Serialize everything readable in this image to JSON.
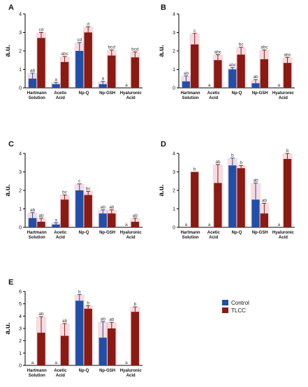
{
  "categories": [
    [
      "Hartmann",
      "Solution"
    ],
    [
      "Acetic",
      "Acid"
    ],
    [
      "Np-Q"
    ],
    [
      "Np-GSH"
    ],
    [
      "Hyaluronic",
      "Acid"
    ]
  ],
  "colors": {
    "control": "#1f4fa8",
    "tlcc": "#8b1a12",
    "error": "#e69aa8"
  },
  "legend": [
    {
      "label": "Control",
      "color": "#1f4fa8"
    },
    {
      "label": "TLCC",
      "color": "#8b1a12"
    }
  ],
  "chart_data": [
    {
      "type": "bar",
      "panel": "A",
      "ylabel": "a.u.",
      "ylim": [
        0,
        4
      ],
      "yticks": [
        0,
        1,
        2,
        3,
        4
      ],
      "series": [
        {
          "name": "Control",
          "values": [
            0.5,
            0.2,
            2.0,
            0.2,
            0.0
          ],
          "errors": [
            0.3,
            0.1,
            0.45,
            0.15,
            0
          ],
          "labels": [
            "ab",
            "a",
            "cd",
            "a",
            "a"
          ]
        },
        {
          "name": "TLCC",
          "values": [
            2.7,
            1.4,
            3.0,
            1.75,
            1.65
          ],
          "errors": [
            0.3,
            0.3,
            0.3,
            0.3,
            0.3
          ],
          "labels": [
            "cd",
            "abc",
            "d",
            "bcd",
            "bcd"
          ]
        }
      ]
    },
    {
      "type": "bar",
      "panel": "B",
      "ylabel": "a.u.",
      "ylim": [
        0,
        4
      ],
      "yticks": [
        0,
        1,
        2,
        3,
        4
      ],
      "series": [
        {
          "name": "Control",
          "values": [
            0.35,
            0.0,
            1.0,
            0.25,
            0.0
          ],
          "errors": [
            0.3,
            0,
            0.1,
            0.2,
            0
          ],
          "labels": [
            "ab",
            "a",
            "abc",
            "ab",
            "a"
          ]
        },
        {
          "name": "TLCC",
          "values": [
            2.35,
            1.5,
            1.8,
            1.55,
            1.35
          ],
          "errors": [
            0.6,
            0.3,
            0.4,
            0.5,
            0.3
          ],
          "labels": [
            "c",
            "abc",
            "bc",
            "abc",
            "abc"
          ]
        }
      ]
    },
    {
      "type": "bar",
      "panel": "C",
      "ylabel": "a.u.",
      "ylim": [
        0,
        4
      ],
      "yticks": [
        0,
        1,
        2,
        3,
        4
      ],
      "series": [
        {
          "name": "Control",
          "values": [
            0.5,
            0.15,
            2.0,
            0.75,
            0.0
          ],
          "errors": [
            0.3,
            0.1,
            0.35,
            0.2,
            0
          ],
          "labels": [
            "ab",
            "a",
            "c",
            "ab",
            "a"
          ]
        },
        {
          "name": "TLCC",
          "values": [
            0.3,
            1.5,
            1.75,
            0.75,
            0.3
          ],
          "errors": [
            0.2,
            0.25,
            0.2,
            0.2,
            0.2
          ],
          "labels": [
            "ab",
            "bc",
            "bc",
            "ab",
            "ab"
          ]
        }
      ]
    },
    {
      "type": "bar",
      "panel": "D",
      "ylabel": "a.u.",
      "ylim": [
        0,
        4
      ],
      "yticks": [
        0,
        1,
        2,
        3,
        4
      ],
      "series": [
        {
          "name": "Control",
          "values": [
            0.0,
            0.0,
            3.35,
            1.5,
            0.0
          ],
          "errors": [
            0,
            0,
            0.4,
            0.9,
            0
          ],
          "labels": [
            "a",
            "a",
            "b",
            "ab",
            "a"
          ]
        },
        {
          "name": "TLCC",
          "values": [
            3.0,
            2.4,
            3.2,
            0.75,
            3.7
          ],
          "errors": [
            0,
            1.0,
            0.15,
            0.55,
            0.3
          ],
          "labels": [
            "b",
            "ab",
            "b",
            "ab",
            "b"
          ]
        }
      ]
    },
    {
      "type": "bar",
      "panel": "E",
      "ylabel": "a.u.",
      "ylim": [
        0,
        6
      ],
      "yticks": [
        0,
        1,
        2,
        3,
        4,
        5,
        6
      ],
      "series": [
        {
          "name": "Control",
          "values": [
            0.0,
            0.0,
            5.25,
            2.25,
            0.0
          ],
          "errors": [
            0,
            0,
            0.5,
            1.3,
            0
          ],
          "labels": [
            "a",
            "a",
            "b",
            "ab",
            "a"
          ]
        },
        {
          "name": "TLCC",
          "values": [
            2.65,
            2.4,
            4.6,
            3.0,
            4.35
          ],
          "errors": [
            1.3,
            1.0,
            0.25,
            0.5,
            0.4
          ],
          "labels": [
            "ab",
            "ab",
            "b",
            "ab",
            "b"
          ]
        }
      ]
    }
  ]
}
